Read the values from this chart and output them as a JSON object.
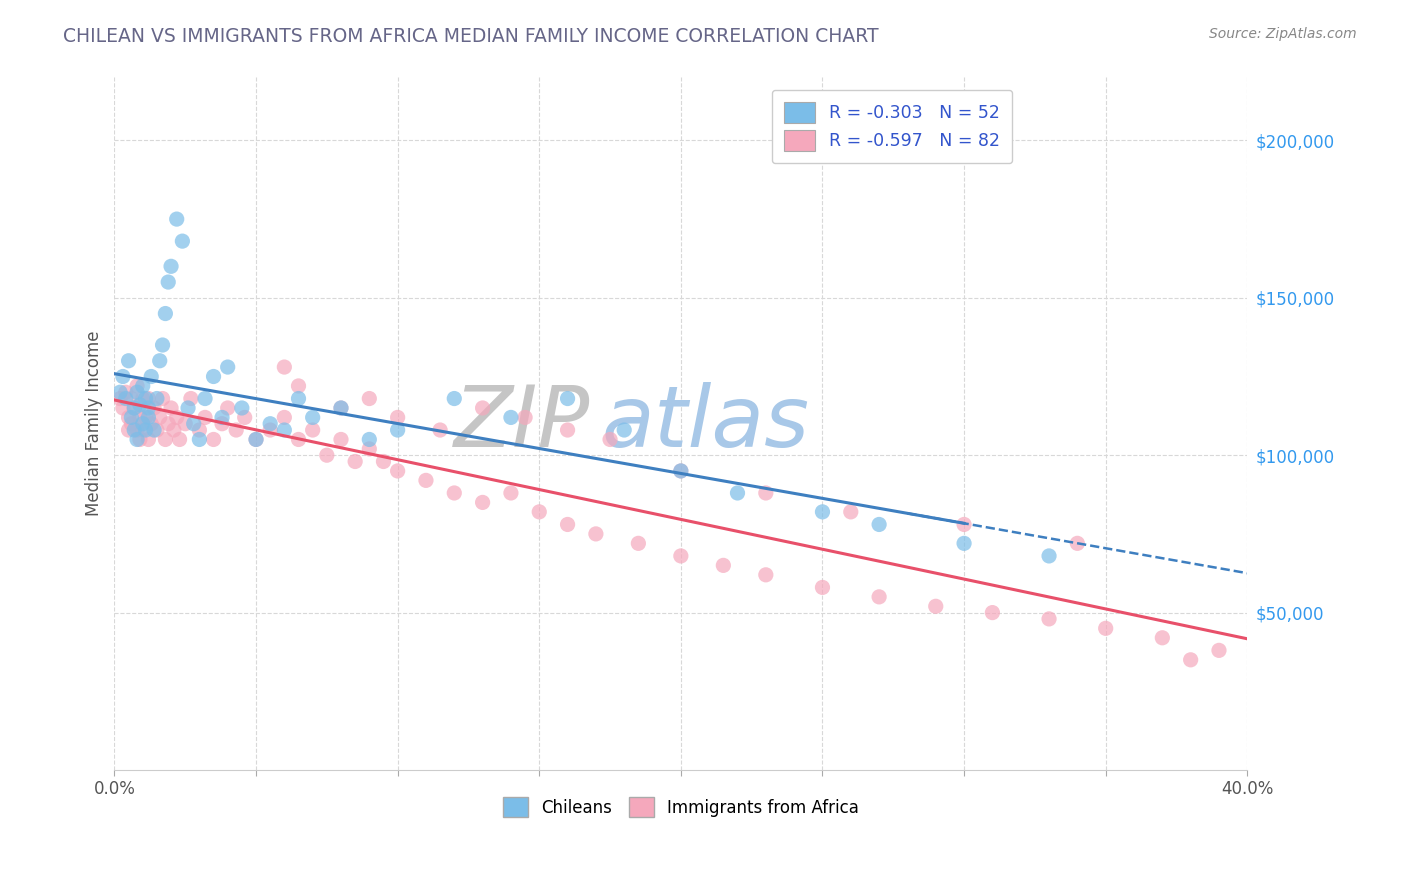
{
  "title": "CHILEAN VS IMMIGRANTS FROM AFRICA MEDIAN FAMILY INCOME CORRELATION CHART",
  "source": "Source: ZipAtlas.com",
  "ylabel": "Median Family Income",
  "xlim": [
    0.0,
    0.4
  ],
  "ylim": [
    0,
    220000
  ],
  "xticks": [
    0.0,
    0.05,
    0.1,
    0.15,
    0.2,
    0.25,
    0.3,
    0.35,
    0.4
  ],
  "yticks": [
    50000,
    100000,
    150000,
    200000
  ],
  "yticklabels": [
    "$50,000",
    "$100,000",
    "$150,000",
    "$200,000"
  ],
  "chilean_color": "#7bbde8",
  "africa_color": "#f5a8bc",
  "chilean_line_color": "#3e7fc0",
  "africa_line_color": "#e8506a",
  "watermark_zip_color": "#c5c5c5",
  "watermark_atlas_color": "#a8c8e8",
  "background_color": "#ffffff",
  "grid_color": "#d8d8d8",
  "title_color": "#666688",
  "source_color": "#888888",
  "ylabel_color": "#555555",
  "ytick_color": "#3399ee",
  "xtick_color": "#555555",
  "chilean_x": [
    0.002,
    0.003,
    0.004,
    0.005,
    0.006,
    0.007,
    0.007,
    0.008,
    0.008,
    0.009,
    0.01,
    0.01,
    0.011,
    0.011,
    0.012,
    0.012,
    0.013,
    0.014,
    0.015,
    0.016,
    0.017,
    0.018,
    0.019,
    0.02,
    0.022,
    0.024,
    0.026,
    0.028,
    0.03,
    0.032,
    0.035,
    0.038,
    0.04,
    0.045,
    0.05,
    0.055,
    0.06,
    0.065,
    0.07,
    0.08,
    0.09,
    0.1,
    0.12,
    0.14,
    0.16,
    0.18,
    0.2,
    0.22,
    0.25,
    0.27,
    0.3,
    0.33
  ],
  "chilean_y": [
    120000,
    125000,
    118000,
    130000,
    112000,
    115000,
    108000,
    120000,
    105000,
    116000,
    122000,
    110000,
    118000,
    108000,
    115000,
    112000,
    125000,
    108000,
    118000,
    130000,
    135000,
    145000,
    155000,
    160000,
    175000,
    168000,
    115000,
    110000,
    105000,
    118000,
    125000,
    112000,
    128000,
    115000,
    105000,
    110000,
    108000,
    118000,
    112000,
    115000,
    105000,
    108000,
    118000,
    112000,
    118000,
    108000,
    95000,
    88000,
    82000,
    78000,
    72000,
    68000
  ],
  "africa_x": [
    0.002,
    0.003,
    0.004,
    0.005,
    0.005,
    0.006,
    0.006,
    0.007,
    0.008,
    0.008,
    0.009,
    0.009,
    0.01,
    0.01,
    0.011,
    0.012,
    0.012,
    0.013,
    0.014,
    0.015,
    0.016,
    0.017,
    0.018,
    0.019,
    0.02,
    0.021,
    0.022,
    0.023,
    0.025,
    0.027,
    0.03,
    0.032,
    0.035,
    0.038,
    0.04,
    0.043,
    0.046,
    0.05,
    0.055,
    0.06,
    0.065,
    0.07,
    0.075,
    0.08,
    0.085,
    0.09,
    0.095,
    0.1,
    0.11,
    0.12,
    0.13,
    0.14,
    0.15,
    0.16,
    0.17,
    0.185,
    0.2,
    0.215,
    0.23,
    0.25,
    0.27,
    0.29,
    0.31,
    0.33,
    0.35,
    0.37,
    0.39,
    0.06,
    0.065,
    0.08,
    0.09,
    0.1,
    0.115,
    0.13,
    0.145,
    0.16,
    0.175,
    0.2,
    0.23,
    0.26,
    0.3,
    0.34,
    0.38
  ],
  "africa_y": [
    118000,
    115000,
    120000,
    112000,
    108000,
    118000,
    110000,
    115000,
    122000,
    108000,
    112000,
    105000,
    118000,
    108000,
    112000,
    118000,
    105000,
    110000,
    115000,
    108000,
    112000,
    118000,
    105000,
    110000,
    115000,
    108000,
    112000,
    105000,
    110000,
    118000,
    108000,
    112000,
    105000,
    110000,
    115000,
    108000,
    112000,
    105000,
    108000,
    112000,
    105000,
    108000,
    100000,
    105000,
    98000,
    102000,
    98000,
    95000,
    92000,
    88000,
    85000,
    88000,
    82000,
    78000,
    75000,
    72000,
    68000,
    65000,
    62000,
    58000,
    55000,
    52000,
    50000,
    48000,
    45000,
    42000,
    38000,
    128000,
    122000,
    115000,
    118000,
    112000,
    108000,
    115000,
    112000,
    108000,
    105000,
    95000,
    88000,
    82000,
    78000,
    72000,
    35000
  ]
}
